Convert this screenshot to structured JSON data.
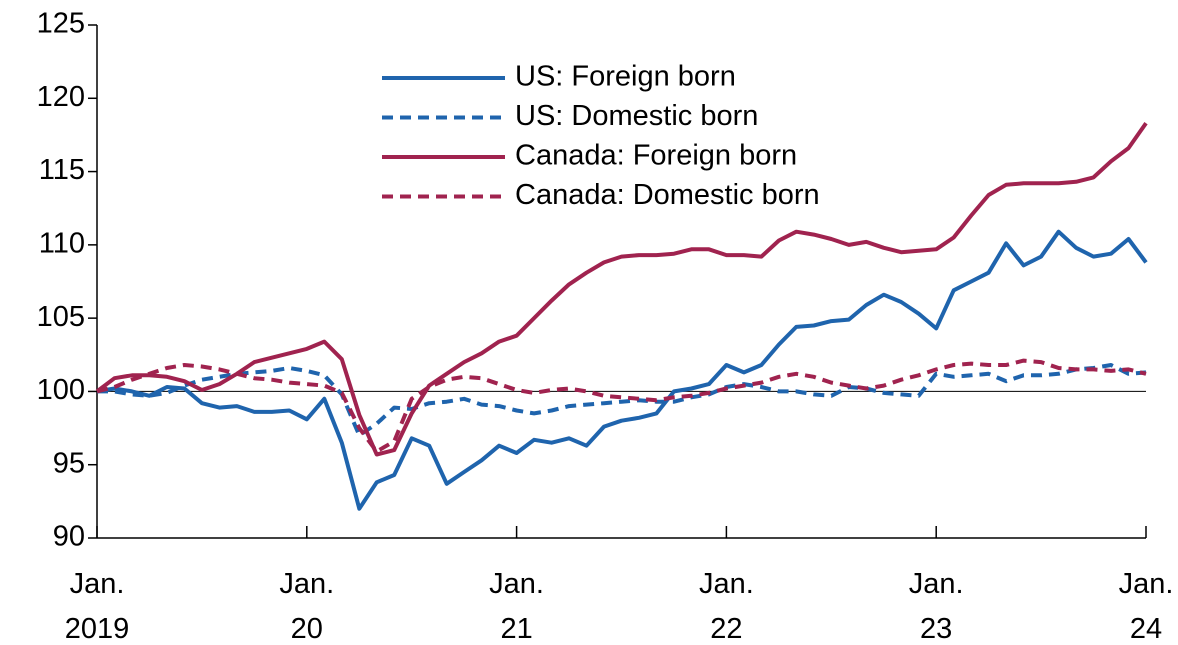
{
  "chart_data": {
    "type": "line",
    "categories": [
      "Jan.\n2019",
      null,
      null,
      null,
      null,
      null,
      null,
      null,
      null,
      null,
      null,
      null,
      "Jan.\n20",
      null,
      null,
      null,
      null,
      null,
      null,
      null,
      null,
      null,
      null,
      null,
      "Jan.\n21",
      null,
      null,
      null,
      null,
      null,
      null,
      null,
      null,
      null,
      null,
      null,
      "Jan.\n22",
      null,
      null,
      null,
      null,
      null,
      null,
      null,
      null,
      null,
      null,
      null,
      "Jan.\n23",
      null,
      null,
      null,
      null,
      null,
      null,
      null,
      null,
      null,
      null,
      null,
      "Jan.\n24"
    ],
    "series": [
      {
        "name": "US: Foreign born",
        "color": "#1f64ad",
        "dashed": false,
        "values": [
          100,
          100.2,
          100,
          99.7,
          100.3,
          100.2,
          99.2,
          98.9,
          99.0,
          98.6,
          98.6,
          98.7,
          98.1,
          99.5,
          96.5,
          92.0,
          93.8,
          94.3,
          96.8,
          96.3,
          93.7,
          94.5,
          95.3,
          96.3,
          95.8,
          96.7,
          96.5,
          96.8,
          96.3,
          97.6,
          98.0,
          98.2,
          98.5,
          100.0,
          100.2,
          100.5,
          101.8,
          101.3,
          101.8,
          103.2,
          104.4,
          104.5,
          104.8,
          104.9,
          105.9,
          106.6,
          106.1,
          105.3,
          104.3,
          106.9,
          107.5,
          108.1,
          110.1,
          108.6,
          109.2,
          110.9,
          109.8,
          109.2,
          109.4,
          110.4,
          108.8
        ]
      },
      {
        "name": "US: Domestic born",
        "color": "#1f64ad",
        "dashed": true,
        "values": [
          100,
          100,
          99.8,
          99.7,
          99.9,
          100.4,
          100.8,
          101.0,
          101.2,
          101.3,
          101.4,
          101.6,
          101.4,
          101.1,
          99.8,
          97.0,
          97.8,
          98.9,
          98.8,
          99.2,
          99.3,
          99.5,
          99.1,
          99.0,
          98.7,
          98.5,
          98.7,
          99.0,
          99.1,
          99.2,
          99.3,
          99.4,
          99.3,
          99.3,
          99.6,
          99.8,
          100.3,
          100.5,
          100.3,
          100.0,
          100.0,
          99.8,
          99.7,
          100.3,
          100.2,
          99.9,
          99.8,
          99.7,
          101.2,
          101.0,
          101.1,
          101.2,
          100.7,
          101.1,
          101.1,
          101.2,
          101.5,
          101.6,
          101.8,
          101.2,
          101.3
        ]
      },
      {
        "name": "Canada: Foreign born",
        "color": "#a0234f",
        "dashed": false,
        "values": [
          100,
          100.9,
          101.1,
          101.1,
          101.0,
          100.7,
          100.1,
          100.5,
          101.2,
          102.0,
          102.3,
          102.6,
          102.9,
          103.4,
          102.2,
          98.4,
          95.7,
          96.0,
          98.5,
          100.4,
          101.2,
          102.0,
          102.6,
          103.4,
          103.8,
          105.0,
          106.2,
          107.3,
          108.1,
          108.8,
          109.2,
          109.3,
          109.3,
          109.4,
          109.7,
          109.7,
          109.3,
          109.3,
          109.2,
          110.3,
          110.9,
          110.7,
          110.4,
          110.0,
          110.2,
          109.8,
          109.5,
          109.6,
          109.7,
          110.5,
          112.0,
          113.4,
          114.1,
          114.2,
          114.2,
          114.2,
          114.3,
          114.6,
          115.7,
          116.6,
          118.3
        ]
      },
      {
        "name": "Canada: Domestic born",
        "color": "#a0234f",
        "dashed": true,
        "values": [
          100,
          100.3,
          100.8,
          101.2,
          101.6,
          101.8,
          101.7,
          101.5,
          101.2,
          100.9,
          100.8,
          100.6,
          100.5,
          100.4,
          99.9,
          97.5,
          95.9,
          96.6,
          99.5,
          100.3,
          100.8,
          101.0,
          100.9,
          100.5,
          100.1,
          99.9,
          100.1,
          100.2,
          100.0,
          99.7,
          99.6,
          99.5,
          99.4,
          99.6,
          99.7,
          99.9,
          100.2,
          100.4,
          100.6,
          101.0,
          101.2,
          101.0,
          100.6,
          100.4,
          100.2,
          100.4,
          100.8,
          101.1,
          101.5,
          101.8,
          101.9,
          101.8,
          101.8,
          102.1,
          102.0,
          101.6,
          101.5,
          101.5,
          101.4,
          101.5,
          101.2
        ]
      }
    ],
    "ylim": [
      90,
      125
    ],
    "yticks": [
      90,
      95,
      100,
      105,
      110,
      115,
      120,
      125
    ],
    "reference_line": 100,
    "legend": "top"
  }
}
